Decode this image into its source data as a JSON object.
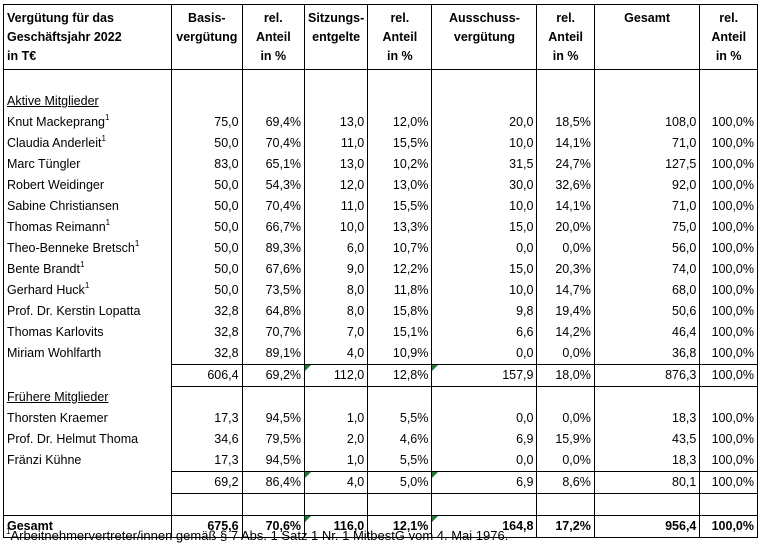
{
  "header": {
    "title": [
      "Vergütung für das",
      "Geschäftsjahr 2022",
      "in T€"
    ],
    "columns": [
      [
        "Basis-",
        "vergütung"
      ],
      [
        "rel.",
        "Anteil",
        "in %"
      ],
      [
        "Sitzungs-",
        "entgelte"
      ],
      [
        "rel.",
        "Anteil",
        "in %"
      ],
      [
        "Ausschuss-",
        "vergütung"
      ],
      [
        "rel.",
        "Anteil",
        "in %"
      ],
      [
        "Gesamt"
      ],
      [
        "rel.",
        "Anteil",
        "in %"
      ]
    ]
  },
  "sections": {
    "active": "Aktive Mitglieder",
    "former": "Frühere Mitglieder"
  },
  "active_rows": [
    {
      "name": "Knut Mackeprang",
      "fn": "1",
      "values": [
        "75,0",
        "69,4%",
        "13,0",
        "12,0%",
        "20,0",
        "18,5%",
        "108,0",
        "100,0%"
      ]
    },
    {
      "name": "Claudia Anderleit",
      "fn": "1",
      "values": [
        "50,0",
        "70,4%",
        "11,0",
        "15,5%",
        "10,0",
        "14,1%",
        "71,0",
        "100,0%"
      ]
    },
    {
      "name": "Marc Tüngler",
      "fn": "",
      "values": [
        "83,0",
        "65,1%",
        "13,0",
        "10,2%",
        "31,5",
        "24,7%",
        "127,5",
        "100,0%"
      ]
    },
    {
      "name": "Robert Weidinger",
      "fn": "",
      "values": [
        "50,0",
        "54,3%",
        "12,0",
        "13,0%",
        "30,0",
        "32,6%",
        "92,0",
        "100,0%"
      ]
    },
    {
      "name": "Sabine Christiansen",
      "fn": "",
      "values": [
        "50,0",
        "70,4%",
        "11,0",
        "15,5%",
        "10,0",
        "14,1%",
        "71,0",
        "100,0%"
      ]
    },
    {
      "name": "Thomas Reimann",
      "fn": "1",
      "values": [
        "50,0",
        "66,7%",
        "10,0",
        "13,3%",
        "15,0",
        "20,0%",
        "75,0",
        "100,0%"
      ]
    },
    {
      "name": "Theo-Benneke Bretsch",
      "fn": "1",
      "values": [
        "50,0",
        "89,3%",
        "6,0",
        "10,7%",
        "0,0",
        "0,0%",
        "56,0",
        "100,0%"
      ]
    },
    {
      "name": "Bente Brandt",
      "fn": "1",
      "values": [
        "50,0",
        "67,6%",
        "9,0",
        "12,2%",
        "15,0",
        "20,3%",
        "74,0",
        "100,0%"
      ]
    },
    {
      "name": "Gerhard Huck",
      "fn": "1",
      "values": [
        "50,0",
        "73,5%",
        "8,0",
        "11,8%",
        "10,0",
        "14,7%",
        "68,0",
        "100,0%"
      ]
    },
    {
      "name": "Prof. Dr. Kerstin Lopatta",
      "fn": "",
      "values": [
        "32,8",
        "64,8%",
        "8,0",
        "15,8%",
        "9,8",
        "19,4%",
        "50,6",
        "100,0%"
      ]
    },
    {
      "name": "Thomas Karlovits",
      "fn": "",
      "values": [
        "32,8",
        "70,7%",
        "7,0",
        "15,1%",
        "6,6",
        "14,2%",
        "46,4",
        "100,0%"
      ]
    },
    {
      "name": "Miriam Wohlfarth",
      "fn": "",
      "values": [
        "32,8",
        "89,1%",
        "4,0",
        "10,9%",
        "0,0",
        "0,0%",
        "36,8",
        "100,0%"
      ]
    }
  ],
  "active_subtotal": [
    "606,4",
    "69,2%",
    "112,0",
    "12,8%",
    "157,9",
    "18,0%",
    "876,3",
    "100,0%"
  ],
  "former_rows": [
    {
      "name": "Thorsten Kraemer",
      "fn": "",
      "values": [
        "17,3",
        "94,5%",
        "1,0",
        "5,5%",
        "0,0",
        "0,0%",
        "18,3",
        "100,0%"
      ]
    },
    {
      "name": "Prof. Dr. Helmut Thoma",
      "fn": "",
      "values": [
        "34,6",
        "79,5%",
        "2,0",
        "4,6%",
        "6,9",
        "15,9%",
        "43,5",
        "100,0%"
      ]
    },
    {
      "name": "Fränzi Kühne",
      "fn": "",
      "values": [
        "17,3",
        "94,5%",
        "1,0",
        "5,5%",
        "0,0",
        "0,0%",
        "18,3",
        "100,0%"
      ]
    }
  ],
  "former_subtotal": [
    "69,2",
    "86,4%",
    "4,0",
    "5,0%",
    "6,9",
    "8,6%",
    "80,1",
    "100,0%"
  ],
  "total": {
    "label": "Gesamt",
    "values": [
      "675,6",
      "70,6%",
      "116,0",
      "12,1%",
      "164,8",
      "17,2%",
      "956,4",
      "100,0%"
    ]
  },
  "footnote": {
    "marker": "1",
    "text": "Arbeitnehmervertreter/innen gemäß § 7 Abs. 1 Satz 1 Nr. 1 MitbestG vom 4. Mai 1976."
  },
  "colors": {
    "cell_marker": "#1e7b34"
  }
}
